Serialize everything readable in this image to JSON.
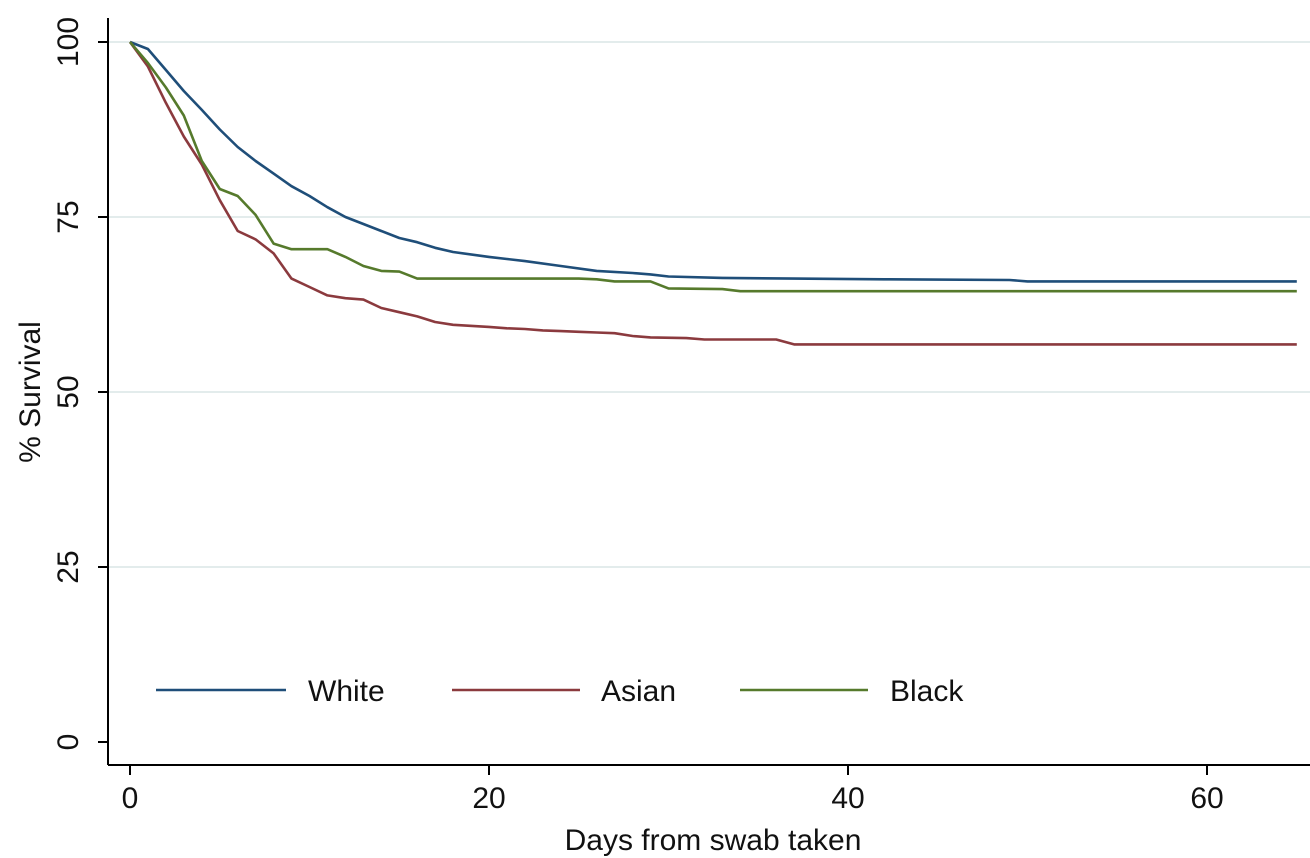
{
  "chart_data": {
    "type": "line",
    "title": "",
    "xlabel": "Days from swab taken",
    "ylabel": "% Survival",
    "xlim": [
      0,
      65
    ],
    "ylim": [
      0,
      100
    ],
    "xticks": [
      0,
      20,
      40,
      60
    ],
    "yticks": [
      0,
      25,
      50,
      75,
      100
    ],
    "grid": "horizontal",
    "legend_position": "bottom-inside",
    "series": [
      {
        "name": "White",
        "color": "#1f4e79",
        "x": [
          0,
          1,
          2,
          3,
          4,
          5,
          6,
          7,
          8,
          9,
          10,
          11,
          12,
          13,
          14,
          15,
          16,
          17,
          18,
          20,
          21,
          22,
          24,
          26,
          28,
          29,
          30,
          33,
          37,
          42,
          49,
          50,
          65
        ],
        "y": [
          100,
          99,
          96,
          93,
          90.3,
          87.5,
          85,
          83,
          81.2,
          79.4,
          78,
          76.4,
          75,
          74,
          73,
          72,
          71.4,
          70.6,
          70,
          69.3,
          69,
          68.7,
          68,
          67.3,
          67,
          66.8,
          66.5,
          66.3,
          66.2,
          66.1,
          66,
          65.8,
          65.8
        ]
      },
      {
        "name": "Asian",
        "color": "#8b3a3e",
        "x": [
          0,
          1,
          2,
          3,
          4,
          5,
          6,
          7,
          8,
          9,
          10,
          11,
          12,
          13,
          14,
          15,
          16,
          17,
          18,
          20,
          21,
          22,
          23,
          24,
          25,
          26,
          27,
          28,
          29,
          31,
          32,
          36,
          37,
          65
        ],
        "y": [
          100,
          96.5,
          91.3,
          86.5,
          82.5,
          77.4,
          73,
          71.8,
          69.8,
          66.2,
          65,
          63.8,
          63.4,
          63.2,
          62,
          61.4,
          60.8,
          60,
          59.6,
          59.3,
          59.1,
          59,
          58.8,
          58.7,
          58.6,
          58.5,
          58.4,
          58,
          57.8,
          57.7,
          57.5,
          57.5,
          56.8,
          56.8
        ]
      },
      {
        "name": "Black",
        "color": "#567a2c",
        "x": [
          0,
          1,
          2,
          3,
          4,
          5,
          6,
          7,
          8,
          9,
          10,
          11,
          12,
          13,
          14,
          15,
          16,
          17,
          20,
          25,
          26,
          27,
          29,
          30,
          33,
          34,
          65
        ],
        "y": [
          100,
          97,
          93.5,
          89.5,
          83,
          79,
          78,
          75.3,
          71.2,
          70.4,
          70.4,
          70.4,
          69.3,
          68,
          67.3,
          67.2,
          66.2,
          66.2,
          66.2,
          66.2,
          66.1,
          65.8,
          65.8,
          64.8,
          64.7,
          64.4,
          64.4
        ]
      }
    ]
  }
}
